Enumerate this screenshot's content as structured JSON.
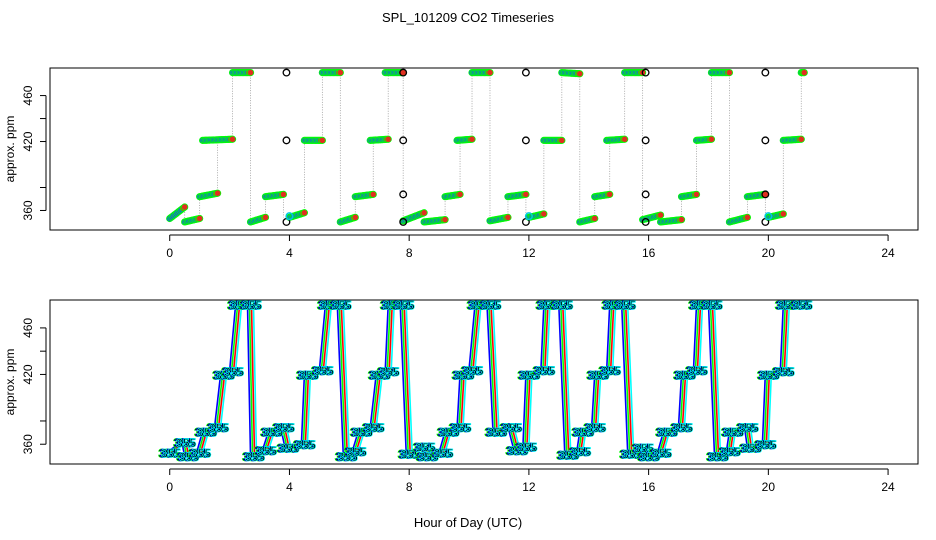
{
  "title": "SPL_101209  CO2 Timeseries",
  "xlabel": "Hour of Day (UTC)",
  "colors": {
    "steps": [
      "#0000ff",
      "#00ff00",
      "#ff0000",
      "#00ffff"
    ],
    "marker_fill_a": "#1a4aff",
    "marker_fill_b": "#e03020",
    "outlier": "#000000",
    "cyan": "#00c8e0",
    "connector": "#9a9a9a"
  },
  "chart_data": [
    {
      "type": "scatter",
      "panel": "top",
      "title": "",
      "ylabel": "approx. ppm",
      "xlim": [
        -4,
        25
      ],
      "ylim": [
        343,
        484
      ],
      "x_ticks": [
        0,
        4,
        8,
        12,
        16,
        20,
        24
      ],
      "x_tick_labels": [
        "0",
        "4",
        "8",
        "12",
        "16",
        "20",
        "24"
      ],
      "y_ticks": [
        360,
        420,
        460
      ],
      "y_tick_labels": [
        "360",
        "420",
        "460"
      ],
      "y_minor_ticks": [
        380,
        440
      ],
      "levels": [
        355,
        351,
        375,
        422,
        480,
        374,
        357
      ],
      "segments": [
        {
          "x_start": 0.0,
          "x_end": 0.5,
          "y_start": 353,
          "y_end": 363
        },
        {
          "x_start": 0.5,
          "x_end": 1.0,
          "y_start": 350,
          "y_end": 353
        },
        {
          "x_start": 1.0,
          "x_end": 1.6,
          "y_start": 372,
          "y_end": 375
        },
        {
          "x_start": 1.1,
          "x_end": 2.1,
          "y_start": 421,
          "y_end": 422
        },
        {
          "x_start": 2.1,
          "x_end": 2.7,
          "y_start": 480,
          "y_end": 480
        },
        {
          "x_start": 2.7,
          "x_end": 3.2,
          "y_start": 350,
          "y_end": 354
        },
        {
          "x_start": 3.2,
          "x_end": 3.8,
          "y_start": 372,
          "y_end": 374
        },
        {
          "x_start": 4.0,
          "x_end": 4.5,
          "y_start": 354,
          "y_end": 358
        },
        {
          "x_start": 4.5,
          "x_end": 5.1,
          "y_start": 421,
          "y_end": 421
        },
        {
          "x_start": 5.1,
          "x_end": 5.7,
          "y_start": 480,
          "y_end": 480
        },
        {
          "x_start": 5.7,
          "x_end": 6.2,
          "y_start": 350,
          "y_end": 354
        },
        {
          "x_start": 6.2,
          "x_end": 6.8,
          "y_start": 372,
          "y_end": 374
        },
        {
          "x_start": 6.7,
          "x_end": 7.3,
          "y_start": 421,
          "y_end": 422
        },
        {
          "x_start": 7.2,
          "x_end": 7.8,
          "y_start": 480,
          "y_end": 480
        },
        {
          "x_start": 7.8,
          "x_end": 8.5,
          "y_start": 351,
          "y_end": 358
        },
        {
          "x_start": 8.5,
          "x_end": 9.2,
          "y_start": 350,
          "y_end": 352
        },
        {
          "x_start": 9.2,
          "x_end": 9.7,
          "y_start": 372,
          "y_end": 374
        },
        {
          "x_start": 9.6,
          "x_end": 10.1,
          "y_start": 421,
          "y_end": 422
        },
        {
          "x_start": 10.1,
          "x_end": 10.7,
          "y_start": 480,
          "y_end": 480
        },
        {
          "x_start": 10.7,
          "x_end": 11.3,
          "y_start": 351,
          "y_end": 354
        },
        {
          "x_start": 11.3,
          "x_end": 11.9,
          "y_start": 372,
          "y_end": 374
        },
        {
          "x_start": 12.0,
          "x_end": 12.5,
          "y_start": 354,
          "y_end": 357
        },
        {
          "x_start": 12.5,
          "x_end": 13.1,
          "y_start": 421,
          "y_end": 421
        },
        {
          "x_start": 13.1,
          "x_end": 13.7,
          "y_start": 480,
          "y_end": 479
        },
        {
          "x_start": 13.7,
          "x_end": 14.2,
          "y_start": 350,
          "y_end": 353
        },
        {
          "x_start": 14.2,
          "x_end": 14.7,
          "y_start": 372,
          "y_end": 374
        },
        {
          "x_start": 14.6,
          "x_end": 15.2,
          "y_start": 421,
          "y_end": 422
        },
        {
          "x_start": 15.2,
          "x_end": 15.8,
          "y_start": 480,
          "y_end": 480
        },
        {
          "x_start": 15.8,
          "x_end": 16.4,
          "y_start": 352,
          "y_end": 356
        },
        {
          "x_start": 16.4,
          "x_end": 17.1,
          "y_start": 350,
          "y_end": 352
        },
        {
          "x_start": 17.1,
          "x_end": 17.6,
          "y_start": 372,
          "y_end": 374
        },
        {
          "x_start": 17.6,
          "x_end": 18.1,
          "y_start": 421,
          "y_end": 422
        },
        {
          "x_start": 18.1,
          "x_end": 18.7,
          "y_start": 480,
          "y_end": 480
        },
        {
          "x_start": 18.7,
          "x_end": 19.3,
          "y_start": 350,
          "y_end": 354
        },
        {
          "x_start": 19.3,
          "x_end": 19.9,
          "y_start": 372,
          "y_end": 374
        },
        {
          "x_start": 20.0,
          "x_end": 20.5,
          "y_start": 354,
          "y_end": 357
        },
        {
          "x_start": 20.5,
          "x_end": 21.1,
          "y_start": 421,
          "y_end": 422
        },
        {
          "x_start": 21.1,
          "x_end": 21.2,
          "y_start": 480,
          "y_end": 480
        }
      ],
      "outliers": [
        {
          "x": 3.9,
          "y": 350
        },
        {
          "x": 3.9,
          "y": 421
        },
        {
          "x": 3.9,
          "y": 480
        },
        {
          "x": 7.8,
          "y": 350
        },
        {
          "x": 7.8,
          "y": 374
        },
        {
          "x": 7.8,
          "y": 421
        },
        {
          "x": 7.8,
          "y": 480
        },
        {
          "x": 11.9,
          "y": 350
        },
        {
          "x": 11.9,
          "y": 421
        },
        {
          "x": 11.9,
          "y": 480
        },
        {
          "x": 15.9,
          "y": 350
        },
        {
          "x": 15.9,
          "y": 374
        },
        {
          "x": 15.9,
          "y": 421
        },
        {
          "x": 15.9,
          "y": 480
        },
        {
          "x": 19.9,
          "y": 350
        },
        {
          "x": 19.9,
          "y": 374
        },
        {
          "x": 19.9,
          "y": 421
        },
        {
          "x": 19.9,
          "y": 480
        }
      ],
      "cyan_points": [
        {
          "x": 4.0,
          "y": 355
        },
        {
          "x": 12.0,
          "y": 355
        },
        {
          "x": 20.0,
          "y": 355
        }
      ]
    },
    {
      "type": "line",
      "panel": "bottom",
      "title": "",
      "ylabel": "approx. ppm",
      "xlim": [
        -4,
        25
      ],
      "ylim": [
        343,
        484
      ],
      "x_ticks": [
        0,
        4,
        8,
        12,
        16,
        20,
        24
      ],
      "x_tick_labels": [
        "0",
        "4",
        "8",
        "12",
        "16",
        "20",
        "24"
      ],
      "y_ticks": [
        360,
        420,
        460
      ],
      "y_tick_labels": [
        "360",
        "420",
        "460"
      ],
      "y_minor_ticks": [
        380,
        440
      ],
      "marker_label": "355",
      "series": [
        {
          "name": "trace",
          "x": [
            0.0,
            0.5,
            0.6,
            1.0,
            1.2,
            1.6,
            1.8,
            2.1,
            2.3,
            2.7,
            2.8,
            3.2,
            3.4,
            3.8,
            3.95,
            4.5,
            4.6,
            5.1,
            5.3,
            5.7,
            5.9,
            6.2,
            6.4,
            6.8,
            7.0,
            7.3,
            7.4,
            7.8,
            8.0,
            8.5,
            8.6,
            9.1,
            9.3,
            9.7,
            9.8,
            10.1,
            10.3,
            10.7,
            10.9,
            11.4,
            11.6,
            11.9,
            12.0,
            12.5,
            12.6,
            13.1,
            13.3,
            13.7,
            13.8,
            14.2,
            14.3,
            14.7,
            14.8,
            15.2,
            15.4,
            15.8,
            16.0,
            16.4,
            16.6,
            17.1,
            17.2,
            17.6,
            17.7,
            18.1,
            18.3,
            18.7,
            18.8,
            19.3,
            19.4,
            19.9,
            20.0,
            20.5,
            20.6,
            21.1
          ],
          "y": [
            353,
            362,
            350,
            353,
            371,
            375,
            420,
            423,
            480,
            480,
            350,
            355,
            371,
            375,
            357,
            360,
            420,
            424,
            480,
            480,
            350,
            354,
            371,
            375,
            420,
            423,
            480,
            480,
            352,
            358,
            350,
            353,
            371,
            375,
            420,
            424,
            480,
            480,
            371,
            375,
            355,
            358,
            420,
            424,
            480,
            480,
            351,
            354,
            371,
            375,
            420,
            424,
            480,
            480,
            352,
            357,
            350,
            353,
            371,
            375,
            420,
            424,
            480,
            480,
            350,
            354,
            371,
            375,
            357,
            360,
            420,
            423,
            480,
            480
          ]
        }
      ]
    }
  ]
}
